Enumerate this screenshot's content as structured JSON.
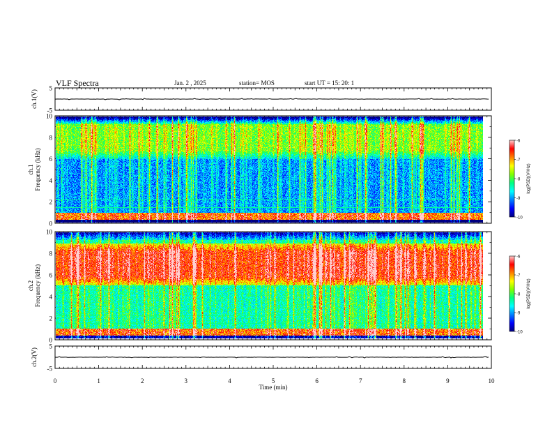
{
  "header": {
    "title": "VLF Spectra",
    "date": "Jan. 2 , 2025",
    "station": "station= MOS",
    "start": "start UT = 15: 20: 1"
  },
  "colors": {
    "colormap": [
      "#000080",
      "#0000ff",
      "#0080ff",
      "#00ffff",
      "#00ff80",
      "#80ff00",
      "#ffff00",
      "#ff8000",
      "#ff0000",
      "#ffd0d0"
    ],
    "axis": "#000000",
    "waveform": "#000000"
  },
  "chart_data": [
    {
      "type": "line",
      "name": "waveform-ch1",
      "ylabel": "ch.1(V)",
      "ylim": [
        -5,
        5
      ],
      "yticks": [
        "5",
        "-5"
      ],
      "description_of_signal": "flat trace near 0 V with sparse small spikes",
      "xlim": [
        0,
        10
      ]
    },
    {
      "type": "heatmap",
      "name": "spectrogram-ch1",
      "ylabel": "ch.1\nFrequency (kHz)",
      "ylabel_lines": [
        "ch.1",
        "Frequency (kHz)"
      ],
      "ylim": [
        0,
        10
      ],
      "yticks": [
        "0",
        "2",
        "4",
        "6",
        "8",
        "10"
      ],
      "xlim": [
        0,
        9.82
      ],
      "colorbar": {
        "label": "log(PSD)(V²/Hz)",
        "range": [
          -10,
          -6
        ],
        "ticks": [
          "-6",
          "-7",
          "-8",
          "-9",
          "-10"
        ]
      },
      "features": {
        "background_level": -9.2,
        "band_6_10_khz_level": -8.0,
        "low_freq_band_below_1khz_level": -7.0,
        "sferic_vertical_streaks": true
      }
    },
    {
      "type": "heatmap",
      "name": "spectrogram-ch2",
      "ylabel": "ch.2\nFrequency (kHz)",
      "ylabel_lines": [
        "ch.2",
        "Frequency (kHz)"
      ],
      "ylim": [
        0,
        10
      ],
      "yticks": [
        "0",
        "2",
        "4",
        "6",
        "8",
        "10"
      ],
      "xlim": [
        0,
        9.82
      ],
      "colorbar": {
        "label": "log(PSD)(V²/Hz)",
        "range": [
          -10,
          -6
        ],
        "ticks": [
          "-6",
          "-7",
          "-8",
          "-9",
          "-10"
        ]
      },
      "features": {
        "background_level": -8.6,
        "band_5_9_khz_level": -6.8,
        "low_freq_band_below_1khz_level": -7.0,
        "sferic_vertical_streaks": true
      }
    },
    {
      "type": "line",
      "name": "waveform-ch2",
      "ylabel": "ch.2(V)",
      "ylim": [
        -5,
        5
      ],
      "yticks": [
        "5",
        "-5"
      ],
      "description_of_signal": "flat trace near 0 V with sparse small spikes",
      "xlim": [
        0,
        10
      ]
    }
  ],
  "xaxis": {
    "label": "Time (min)",
    "range": [
      0,
      10
    ],
    "ticks": [
      "0",
      "1",
      "2",
      "3",
      "4",
      "5",
      "6",
      "7",
      "8",
      "9",
      "10"
    ]
  }
}
